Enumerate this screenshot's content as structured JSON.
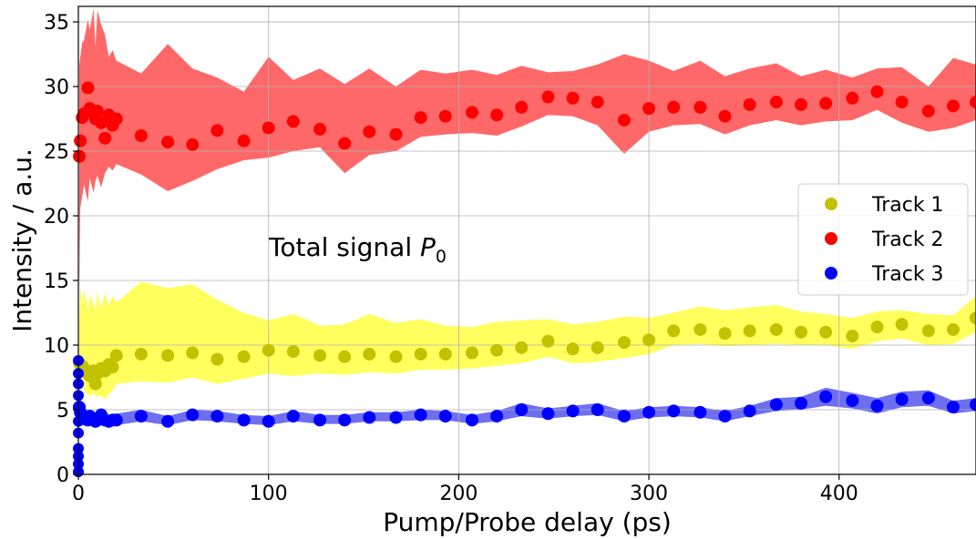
{
  "chart_data": {
    "type": "scatter",
    "xlabel": "Pump/Probe delay (ps)",
    "ylabel": "Intensity / a.u.",
    "xlim": [
      0,
      472
    ],
    "ylim": [
      0,
      36.2
    ],
    "xticks": [
      0,
      100,
      200,
      300,
      400
    ],
    "yticks": [
      0,
      5,
      10,
      15,
      20,
      25,
      30,
      35
    ],
    "grid": true,
    "legend_placement": "center-right",
    "annotation": {
      "prefix": "Total signal ",
      "symbol": "P",
      "subscript": "0"
    },
    "series": [
      {
        "name": "Track 1",
        "color": "#c2c200",
        "band_color": "#ffff55",
        "x": [
          0.5,
          1,
          2,
          3,
          5,
          6,
          8,
          9,
          10,
          12,
          14,
          16,
          18,
          20,
          33,
          47,
          60,
          73,
          87,
          100,
          113,
          127,
          140,
          153,
          167,
          180,
          193,
          207,
          220,
          233,
          247,
          260,
          273,
          287,
          300,
          313,
          327,
          340,
          353,
          367,
          380,
          393,
          407,
          420,
          433,
          447,
          460,
          472
        ],
        "y": [
          8.6,
          8.5,
          8.4,
          8.2,
          7.8,
          7.6,
          8.0,
          7.0,
          7.8,
          8.2,
          8.0,
          8.5,
          8.3,
          9.2,
          9.3,
          9.2,
          9.4,
          8.9,
          9.1,
          9.6,
          9.5,
          9.2,
          9.1,
          9.3,
          9.1,
          9.3,
          9.3,
          9.4,
          9.6,
          9.8,
          10.3,
          9.7,
          9.8,
          10.2,
          10.4,
          11.1,
          11.2,
          10.9,
          11.1,
          11.2,
          11.0,
          11.0,
          10.7,
          11.4,
          11.6,
          11.1,
          11.2,
          12.1
        ],
        "lower": [
          6.8,
          6.9,
          7.0,
          6.5,
          6.2,
          6.0,
          6.3,
          6.1,
          6.0,
          6.1,
          5.8,
          6.2,
          6.5,
          7.0,
          7.2,
          7.1,
          7.5,
          7.0,
          7.4,
          7.8,
          7.6,
          7.8,
          7.7,
          7.9,
          7.8,
          8.1,
          8.1,
          8.2,
          8.4,
          8.6,
          9.1,
          8.6,
          8.7,
          9.0,
          9.3,
          10.0,
          10.1,
          9.9,
          10.0,
          10.1,
          10.0,
          10.0,
          9.7,
          10.3,
          10.5,
          10.0,
          10.1,
          11.0
        ],
        "upper": [
          12.0,
          14.5,
          13.4,
          14.3,
          12.8,
          13.9,
          13.2,
          12.7,
          14.1,
          12.9,
          14.0,
          13.1,
          13.8,
          13.3,
          14.9,
          14.4,
          14.7,
          13.5,
          12.5,
          11.9,
          12.4,
          11.5,
          11.6,
          12.4,
          11.7,
          12.0,
          11.5,
          11.4,
          11.8,
          11.9,
          12.0,
          11.6,
          11.8,
          12.2,
          12.1,
          12.5,
          13.0,
          12.7,
          12.9,
          13.1,
          12.6,
          12.4,
          12.1,
          12.6,
          12.7,
          12.4,
          12.3,
          13.8
        ]
      },
      {
        "name": "Track 2",
        "color": "#ff0000",
        "band_color": "#ff6060",
        "x": [
          0.5,
          1,
          2,
          3,
          5,
          6,
          8,
          9,
          10,
          12,
          14,
          16,
          18,
          20,
          33,
          47,
          60,
          73,
          87,
          100,
          113,
          127,
          140,
          153,
          167,
          180,
          193,
          207,
          220,
          233,
          247,
          260,
          273,
          287,
          300,
          313,
          327,
          340,
          353,
          367,
          380,
          393,
          407,
          420,
          433,
          447,
          460,
          472
        ],
        "y": [
          24.6,
          25.8,
          27.6,
          27.9,
          29.9,
          28.3,
          28.0,
          27.5,
          28.1,
          27.2,
          26.0,
          27.8,
          27.0,
          27.5,
          26.2,
          25.7,
          25.5,
          26.6,
          25.8,
          26.8,
          27.3,
          26.7,
          25.6,
          26.5,
          26.3,
          27.6,
          27.7,
          28.0,
          27.8,
          28.4,
          29.2,
          29.1,
          28.8,
          27.4,
          28.3,
          28.4,
          28.4,
          27.7,
          28.6,
          28.8,
          28.6,
          28.7,
          29.1,
          29.6,
          28.8,
          28.1,
          28.5,
          28.8
        ],
        "lower": [
          13.8,
          20.6,
          21.5,
          22.4,
          21.1,
          22.9,
          21.8,
          22.7,
          23.1,
          22.2,
          23.3,
          23.8,
          23.5,
          24.0,
          23.2,
          21.9,
          22.7,
          23.6,
          24.3,
          24.5,
          25.0,
          25.3,
          23.3,
          24.7,
          25.0,
          26.1,
          26.3,
          26.4,
          26.2,
          26.9,
          27.8,
          27.7,
          27.0,
          24.8,
          26.5,
          27.0,
          27.1,
          26.3,
          27.0,
          27.4,
          27.0,
          27.3,
          27.4,
          28.2,
          27.2,
          26.5,
          26.8,
          27.4
        ],
        "upper": [
          31.6,
          32.3,
          33.4,
          33.6,
          35.2,
          34.4,
          36.0,
          33.1,
          35.9,
          34.8,
          34.0,
          32.3,
          32.8,
          32.0,
          31.0,
          33.3,
          31.4,
          30.7,
          29.6,
          32.3,
          30.5,
          31.4,
          30.2,
          31.4,
          30.0,
          31.3,
          31.0,
          31.3,
          30.9,
          31.6,
          31.1,
          31.2,
          31.7,
          32.5,
          32.0,
          31.2,
          32.0,
          30.8,
          31.4,
          31.8,
          30.8,
          31.3,
          30.7,
          31.4,
          31.5,
          30.0,
          32.2,
          31.7
        ]
      },
      {
        "name": "Track 3",
        "color": "#0000ff",
        "band_color": "#5555ee",
        "x": [
          0.5,
          1,
          2,
          3,
          5,
          6,
          8,
          9,
          10,
          12,
          14,
          16,
          18,
          20,
          33,
          47,
          60,
          73,
          87,
          100,
          113,
          127,
          140,
          153,
          167,
          180,
          193,
          207,
          220,
          233,
          247,
          260,
          273,
          287,
          300,
          313,
          327,
          340,
          353,
          367,
          380,
          393,
          407,
          420,
          433,
          447,
          460,
          472
        ],
        "y": [
          5.2,
          4.8,
          4.6,
          4.3,
          4.2,
          4.5,
          4.3,
          4.1,
          4.2,
          4.6,
          4.2,
          4.1,
          4.2,
          4.2,
          4.5,
          4.1,
          4.6,
          4.5,
          4.2,
          4.1,
          4.5,
          4.2,
          4.2,
          4.4,
          4.4,
          4.6,
          4.5,
          4.2,
          4.5,
          5.0,
          4.7,
          4.9,
          5.0,
          4.5,
          4.8,
          4.9,
          4.8,
          4.5,
          4.9,
          5.4,
          5.5,
          6.0,
          5.7,
          5.3,
          5.8,
          5.9,
          5.2,
          5.4
        ],
        "lower": [
          4.5,
          4.2,
          4.1,
          3.9,
          3.8,
          4.0,
          3.8,
          3.7,
          3.8,
          4.1,
          3.8,
          3.7,
          3.8,
          3.8,
          4.1,
          3.8,
          4.2,
          4.1,
          3.9,
          3.8,
          4.1,
          3.9,
          3.9,
          4.1,
          4.1,
          4.2,
          4.2,
          3.9,
          4.1,
          4.5,
          4.3,
          4.5,
          4.6,
          4.1,
          4.4,
          4.5,
          4.4,
          4.1,
          4.5,
          4.9,
          5.0,
          5.3,
          5.1,
          4.7,
          5.2,
          5.3,
          4.7,
          4.9
        ],
        "upper": [
          5.9,
          5.4,
          5.1,
          4.8,
          4.7,
          5.0,
          4.8,
          4.6,
          4.7,
          5.1,
          4.7,
          4.6,
          4.7,
          4.7,
          5.0,
          4.5,
          5.0,
          4.9,
          4.6,
          4.5,
          4.9,
          4.6,
          4.6,
          4.8,
          4.8,
          5.0,
          4.9,
          4.6,
          4.9,
          5.5,
          5.1,
          5.3,
          5.5,
          4.9,
          5.2,
          5.3,
          5.2,
          4.9,
          5.3,
          5.9,
          6.0,
          6.7,
          6.3,
          5.9,
          6.4,
          6.5,
          5.7,
          5.9
        ]
      }
    ],
    "scatter_near_zero": {
      "note": "Track 3 points clustered at delay ~0 spanning low intensities",
      "x": [
        0,
        0,
        0,
        0,
        0,
        0,
        0,
        0,
        0,
        0,
        0
      ],
      "y": [
        0.2,
        0.8,
        1.4,
        2.0,
        3.2,
        4.1,
        5.2,
        6.1,
        7.0,
        7.8,
        8.8
      ]
    }
  }
}
